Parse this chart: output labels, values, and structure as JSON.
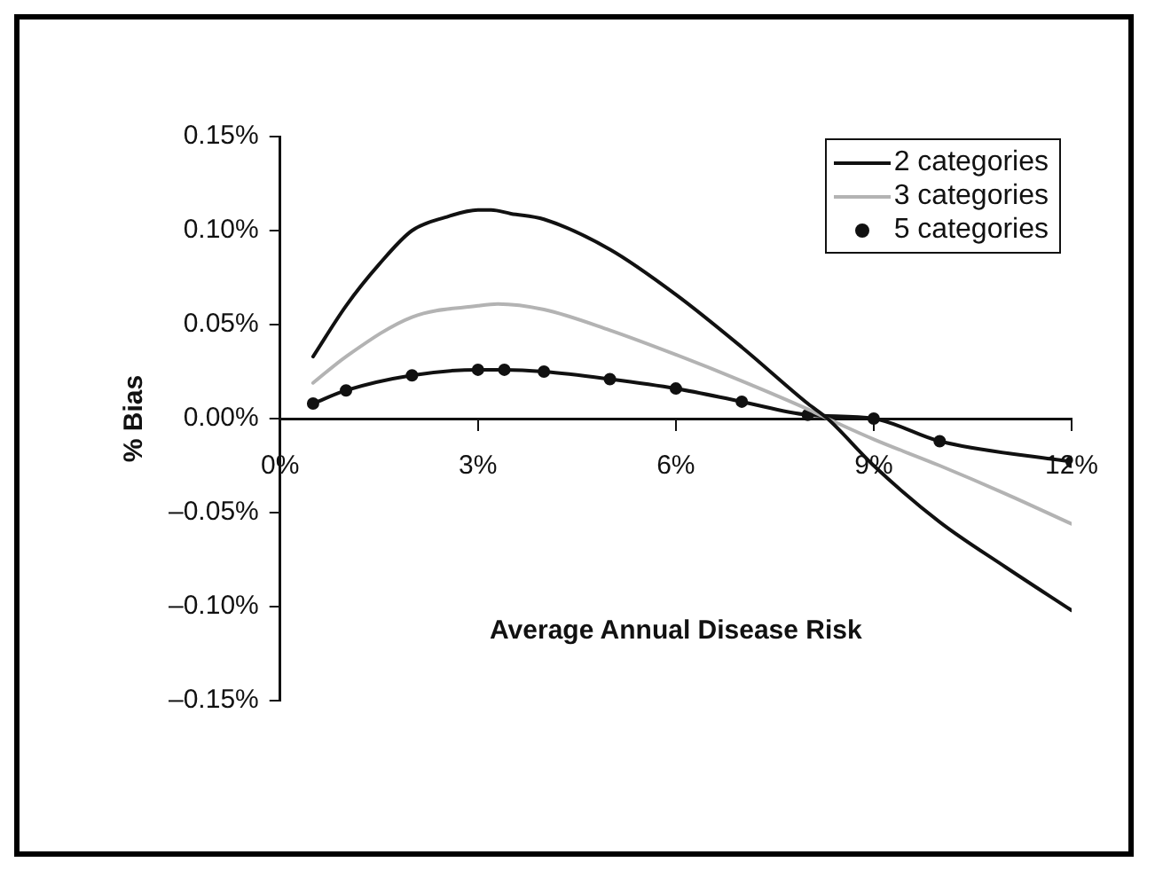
{
  "chart_data": {
    "type": "line",
    "xlabel": "Average Annual Disease Risk",
    "ylabel": "% Bias",
    "xlim": [
      0,
      12
    ],
    "xticks": [
      {
        "value": 0,
        "label": "0%"
      },
      {
        "value": 3,
        "label": "3%"
      },
      {
        "value": 6,
        "label": "6%"
      },
      {
        "value": 9,
        "label": "9%"
      },
      {
        "value": 12,
        "label": "12%"
      }
    ],
    "ylim": [
      -0.15,
      0.15
    ],
    "yticks": [
      {
        "value": -0.15,
        "label": "–0.15%"
      },
      {
        "value": -0.1,
        "label": "–0.10%"
      },
      {
        "value": -0.05,
        "label": "–0.05%"
      },
      {
        "value": 0,
        "label": "0.00%"
      },
      {
        "value": 0.05,
        "label": "0.05%"
      },
      {
        "value": 0.1,
        "label": "0.10%"
      },
      {
        "value": 0.15,
        "label": "0.15%"
      }
    ],
    "grid": false,
    "legend": "top right",
    "series": [
      {
        "name": "2 categories",
        "color": "#111111",
        "marker": "none",
        "x": [
          0.5,
          1,
          1.5,
          2,
          2.5,
          3,
          3.2,
          3.5,
          4,
          5,
          6,
          7,
          8,
          8.3,
          9,
          10,
          11,
          12
        ],
        "values": [
          0.033,
          0.06,
          0.082,
          0.1,
          0.107,
          0.111,
          0.111,
          0.109,
          0.106,
          0.09,
          0.066,
          0.038,
          0.008,
          0.0,
          -0.025,
          -0.055,
          -0.079,
          -0.102
        ]
      },
      {
        "name": "3 categories",
        "color": "#b3b3b3",
        "marker": "none",
        "x": [
          0.5,
          1,
          2,
          3,
          3.3,
          4,
          5,
          6,
          7,
          8,
          8.3,
          9,
          10,
          11,
          12
        ],
        "values": [
          0.019,
          0.033,
          0.054,
          0.06,
          0.061,
          0.058,
          0.047,
          0.034,
          0.02,
          0.005,
          0.0,
          -0.011,
          -0.025,
          -0.04,
          -0.056
        ]
      },
      {
        "name": "5 categories",
        "color": "#111111",
        "marker": "circle",
        "x": [
          0.5,
          1,
          2,
          3,
          3.4,
          4,
          5,
          6,
          7,
          8,
          9,
          10,
          12
        ],
        "values": [
          0.008,
          0.015,
          0.023,
          0.026,
          0.026,
          0.025,
          0.021,
          0.016,
          0.009,
          0.002,
          0.0,
          -0.012,
          -0.023
        ]
      }
    ]
  }
}
